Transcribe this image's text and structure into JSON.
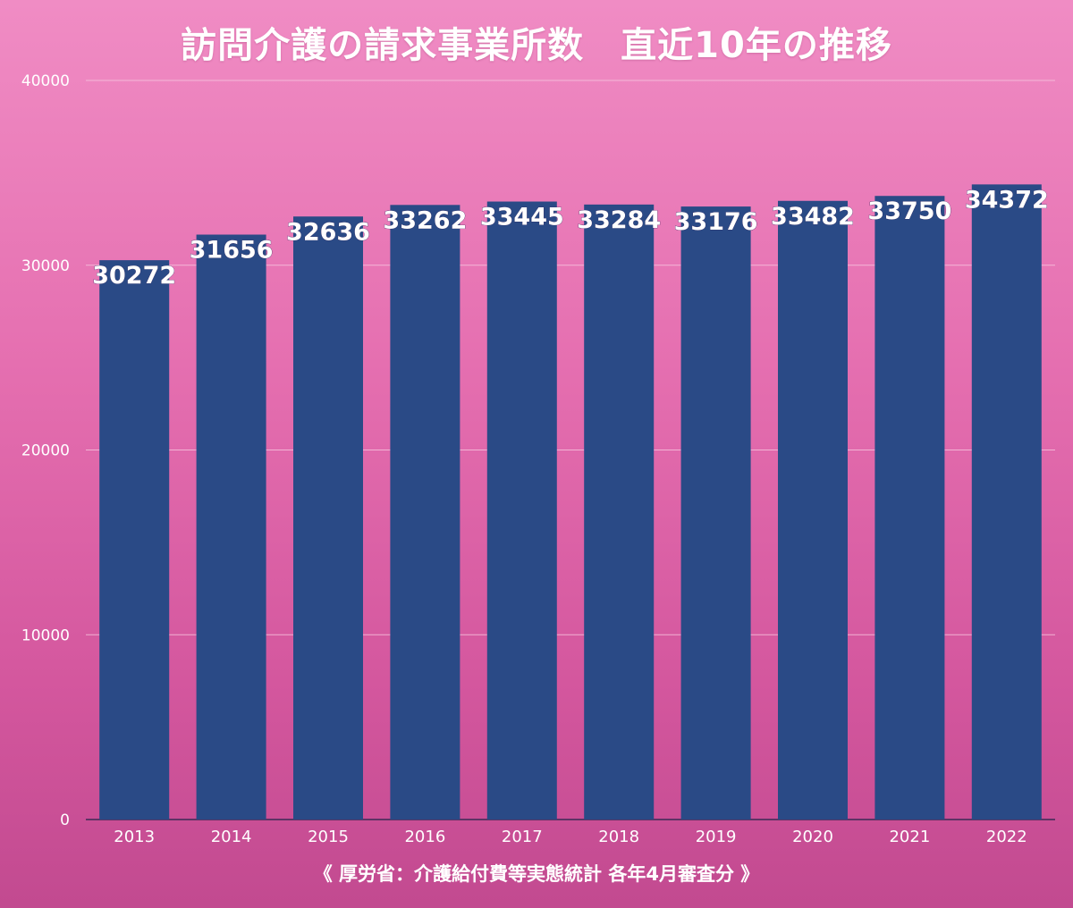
{
  "chart_title": "訪問介護の請求事業所数　直近10年の推移",
  "source_note": "《 厚労省：介護給付費等実態統計 各年4月審査分 》",
  "colors": {
    "bar": "#2a4a86",
    "gridline": "#f7c8e0",
    "tick_label": "#ffffff",
    "data_label": "#ffffff"
  },
  "chart_data": {
    "type": "bar",
    "title": "訪問介護の請求事業所数　直近10年の推移",
    "xlabel": "",
    "ylabel": "",
    "categories": [
      "2013",
      "2014",
      "2015",
      "2016",
      "2017",
      "2018",
      "2019",
      "2020",
      "2021",
      "2022"
    ],
    "values": [
      30272,
      31656,
      32636,
      33262,
      33445,
      33284,
      33176,
      33482,
      33750,
      34372
    ],
    "ylim": [
      0,
      40000
    ],
    "yticks": [
      "0",
      "10000",
      "20000",
      "30000",
      "40000"
    ],
    "grid": true,
    "legend": "none"
  }
}
